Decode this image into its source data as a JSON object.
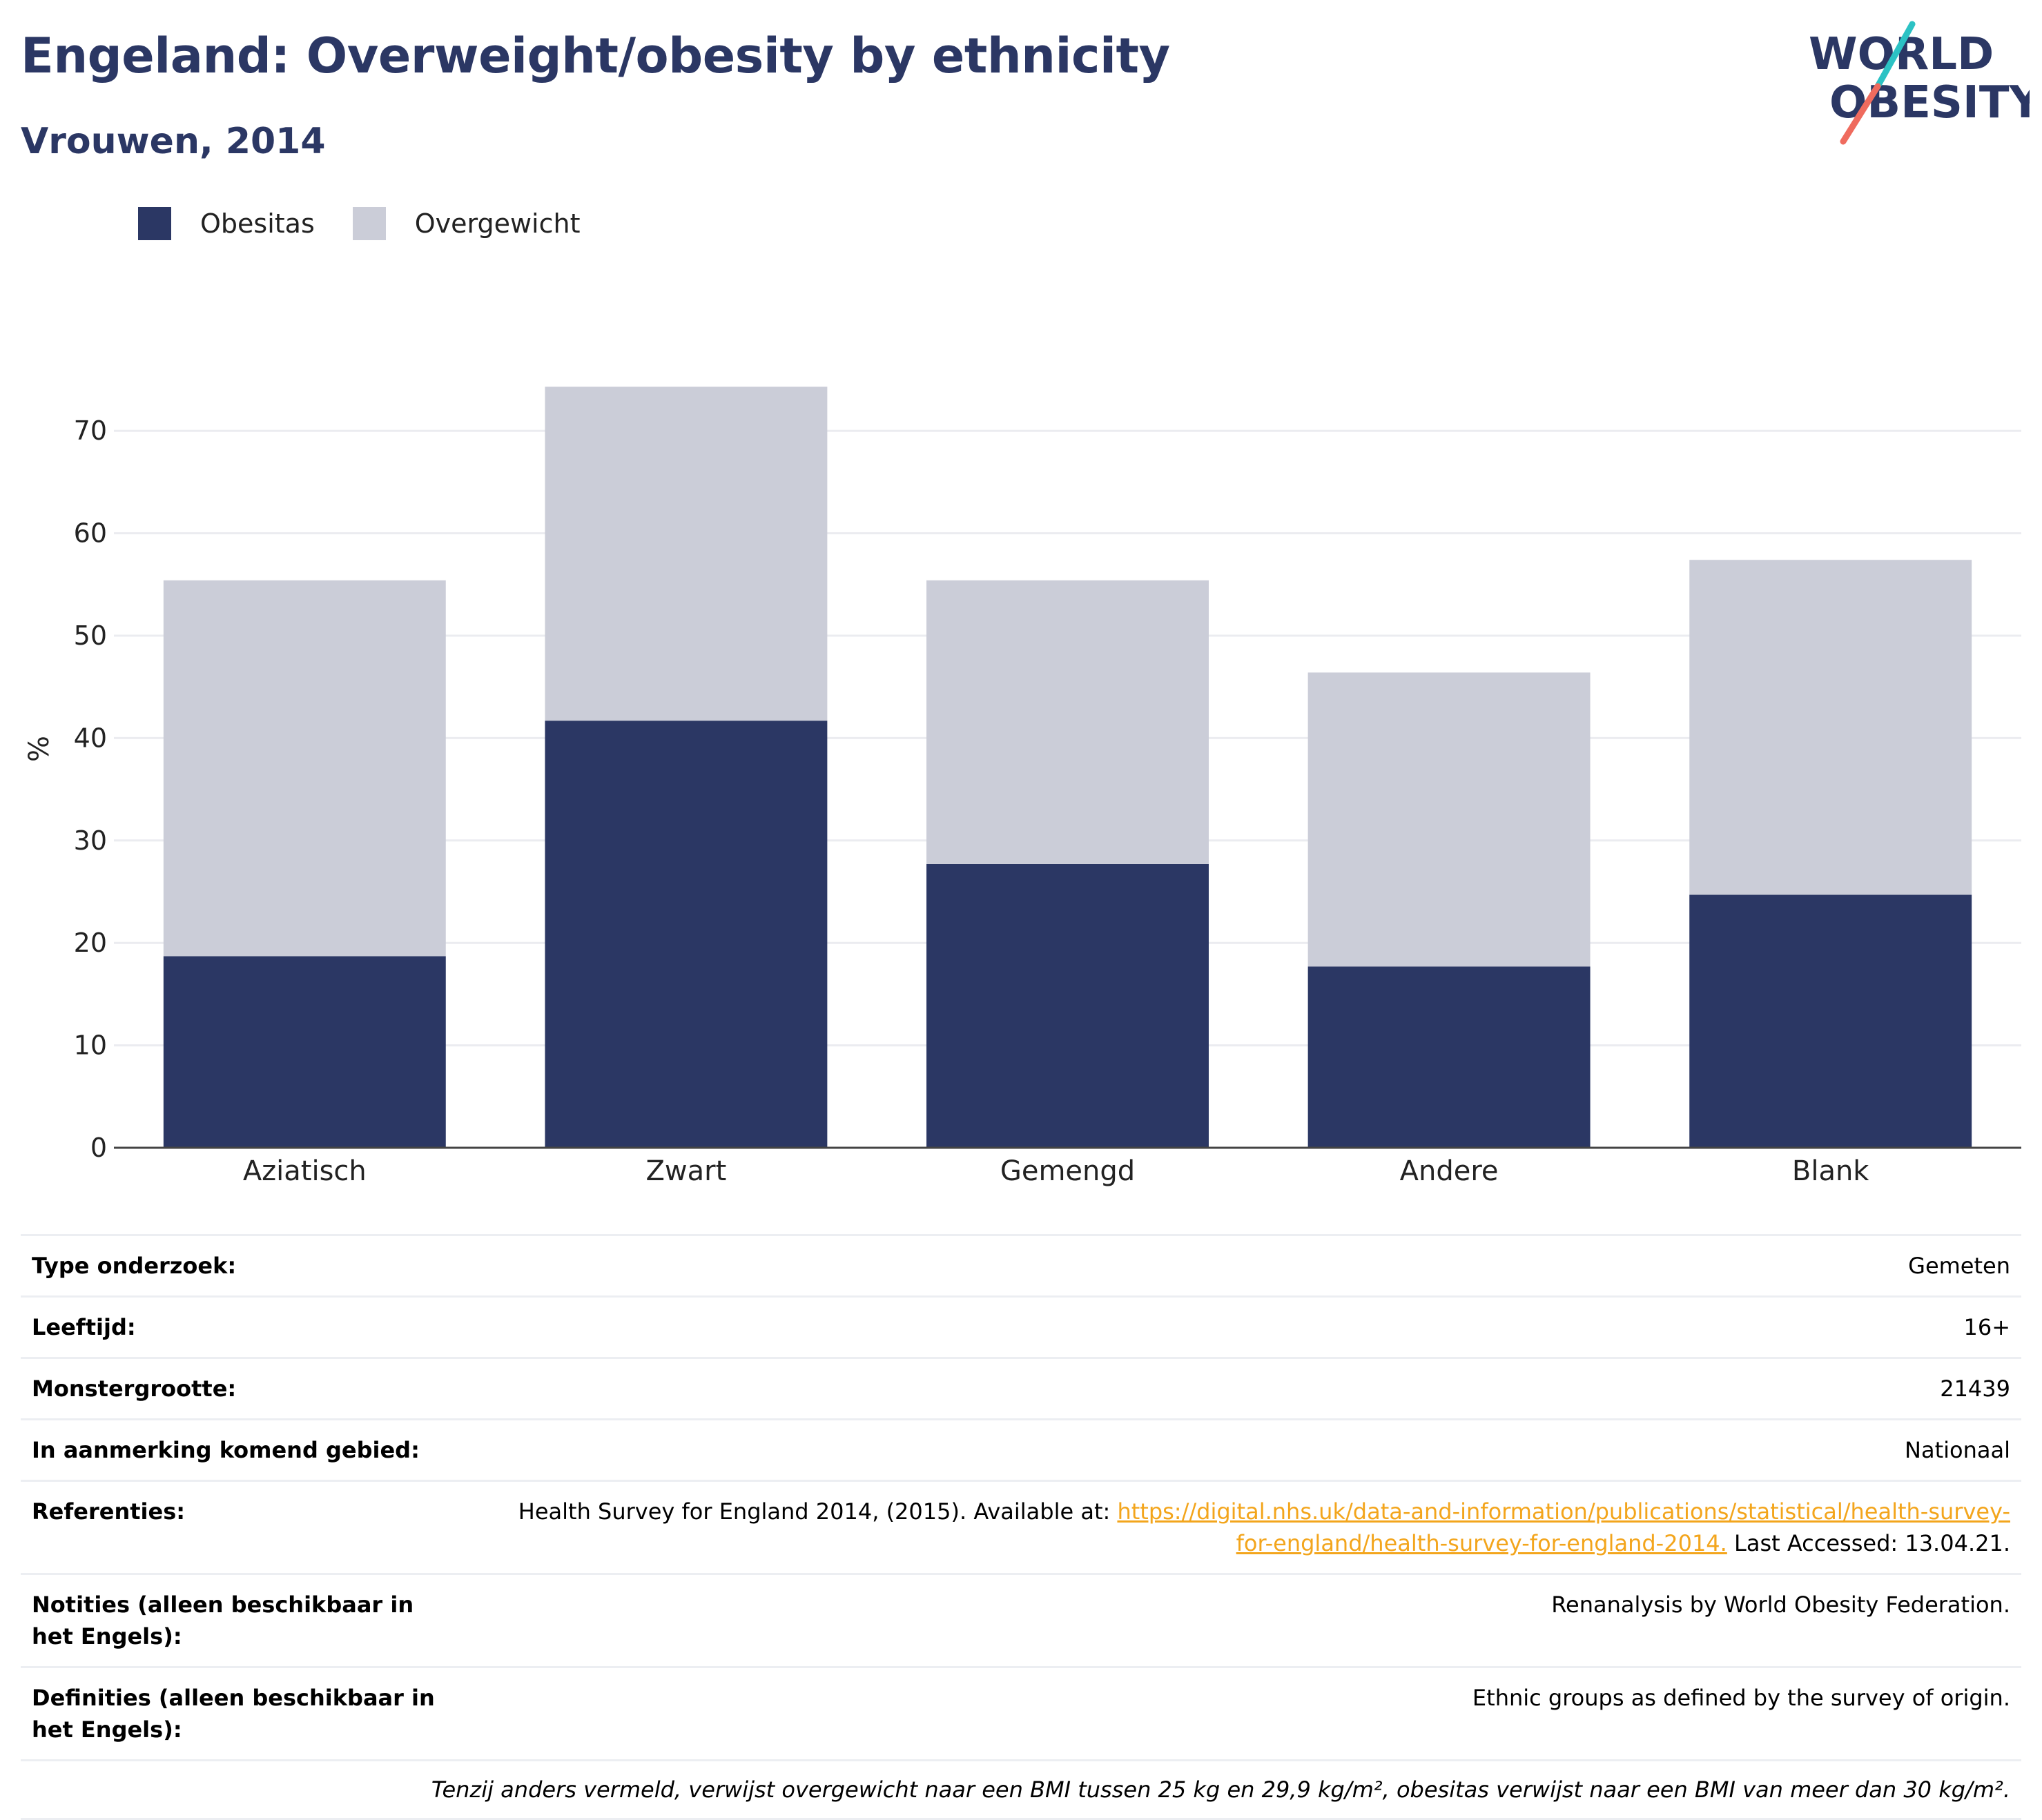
{
  "header": {
    "title": "Engeland: Overweight/obesity by ethnicity",
    "subtitle": "Vrouwen, 2014"
  },
  "logo": {
    "line1": "WORLD",
    "line2": "OBESITY"
  },
  "legend": [
    {
      "label": "Obesitas",
      "color": "#2b3764"
    },
    {
      "label": "Overgewicht",
      "color": "#cbcdd8"
    }
  ],
  "chart_data": {
    "type": "bar",
    "stacked": true,
    "categories": [
      "Aziatisch",
      "Zwart",
      "Gemengd",
      "Andere",
      "Blank"
    ],
    "series": [
      {
        "name": "Obesitas",
        "color": "#2b3764",
        "values": [
          18.7,
          41.7,
          27.7,
          17.7,
          24.7
        ]
      },
      {
        "name": "Overgewicht",
        "color": "#cbcdd8",
        "values": [
          36.7,
          32.6,
          27.7,
          28.7,
          32.7
        ]
      }
    ],
    "ylabel": "%",
    "ylim": [
      0,
      75
    ],
    "yticks": [
      0,
      10,
      20,
      30,
      40,
      50,
      60,
      70
    ],
    "grid": true,
    "legend_position": "top-left"
  },
  "info": {
    "rows": [
      {
        "key": "Type onderzoek:",
        "value": "Gemeten"
      },
      {
        "key": "Leeftijd:",
        "value": "16+"
      },
      {
        "key": "Monstergrootte:",
        "value": "21439"
      },
      {
        "key": "In aanmerking komend gebied:",
        "value": "Nationaal"
      }
    ],
    "references": {
      "key": "Referenties:",
      "prefix": "Health Survey for England 2014, (2015). Available at: ",
      "link": "https://digital.nhs.uk/data-and-information/publications/statistical/health-survey-for-england/health-survey-for-england-2014.",
      "suffix": " Last Accessed: 13.04.21."
    },
    "notes": {
      "key": "Notities (alleen beschikbaar in het Engels):",
      "value": "Renanalysis by World Obesity Federation."
    },
    "definitions": {
      "key": "Definities (alleen beschikbaar in het Engels):",
      "value": "Ethnic groups as defined by the survey of origin."
    },
    "footnote": "Tenzij anders vermeld, verwijst overgewicht naar een BMI tussen 25 kg en 29,9 kg/m², obesitas verwijst naar een BMI van meer dan 30 kg/m²."
  }
}
